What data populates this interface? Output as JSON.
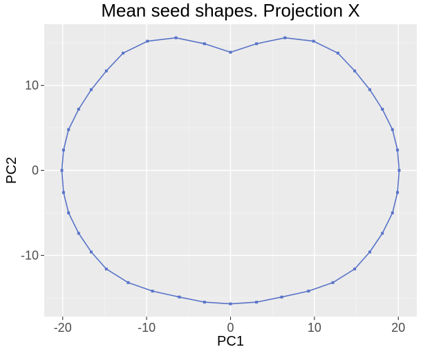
{
  "chart_data": {
    "type": "line",
    "title": "Mean seed shapes. Projection X",
    "xlabel": "PC1",
    "ylabel": "PC2",
    "xlim": [
      -22.2,
      22.2
    ],
    "ylim": [
      -17.2,
      17.2
    ],
    "x_ticks": [
      -20,
      -10,
      0,
      10,
      20
    ],
    "x_tick_labels": [
      "-20",
      "-10",
      "0",
      "10",
      "20"
    ],
    "y_ticks": [
      -10,
      0,
      10
    ],
    "y_tick_labels": [
      "-10",
      "0",
      "10"
    ],
    "grid": true,
    "legend": "none",
    "closed": true,
    "series": [
      {
        "color": "#5873c8",
        "x": [
          0,
          3.1,
          6.5,
          9.9,
          12.8,
          14.8,
          16.6,
          18.1,
          19.3,
          19.9,
          20.1,
          19.9,
          19.3,
          18.1,
          16.6,
          14.8,
          12.2,
          9.3,
          6.1,
          3.1,
          0,
          -3.1,
          -6.1,
          -9.3,
          -12.2,
          -14.8,
          -16.6,
          -18.1,
          -19.3,
          -19.9,
          -20.1,
          -19.9,
          -19.3,
          -18.1,
          -16.6,
          -14.8,
          -12.8,
          -9.9,
          -6.5,
          -3.1
        ],
        "y": [
          13.9,
          14.9,
          15.6,
          15.2,
          13.8,
          11.7,
          9.5,
          7.2,
          4.8,
          2.4,
          0,
          -2.6,
          -5.0,
          -7.4,
          -9.6,
          -11.6,
          -13.2,
          -14.2,
          -14.9,
          -15.5,
          -15.7,
          -15.5,
          -14.9,
          -14.2,
          -13.2,
          -11.6,
          -9.6,
          -7.4,
          -5.0,
          -2.6,
          0,
          2.4,
          4.8,
          7.2,
          9.5,
          11.7,
          13.8,
          15.2,
          15.6,
          14.9
        ]
      }
    ]
  }
}
